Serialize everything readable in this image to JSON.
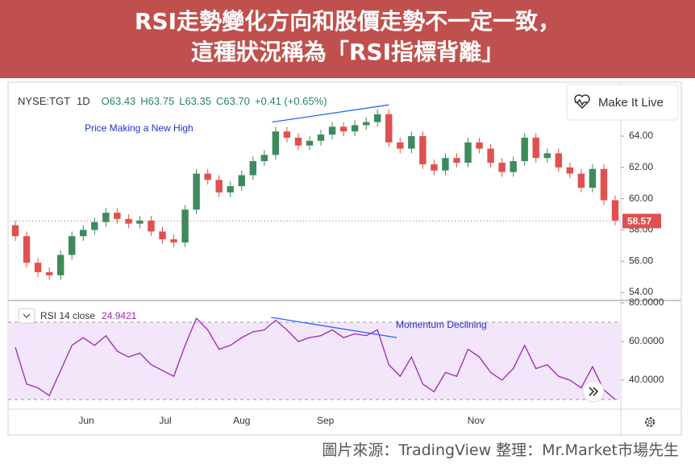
{
  "header": {
    "title": [
      "RSI走勢變化方向和股價走勢不一定一致，",
      "這種狀況稱為「RSI指標背離」"
    ]
  },
  "ui": {
    "button": "Make It Live"
  },
  "footer": "圖片來源：TradingView  整理：Mr.Market市場先生",
  "chart_data": [
    {
      "type": "candlestick",
      "symbol": "NYSE:TGT",
      "interval": "1D",
      "ohlc_text": [
        "O63.43",
        "H63.75",
        "L63.35",
        "C63.70",
        "+0.41 (+0.65%)"
      ],
      "annotation": "Price Making a New High",
      "trendline": {
        "x": [
          22.7,
          33.0
        ],
        "y": [
          64.9,
          66.0
        ],
        "color": "#2962ff"
      },
      "last_price": 58.57,
      "up_color": "#3d8a5c",
      "down_color": "#e0504e",
      "open": [
        58.3,
        57.6,
        55.9,
        55.3,
        55.1,
        56.4,
        57.6,
        58.0,
        58.5,
        59.1,
        58.7,
        58.4,
        58.6,
        57.9,
        57.4,
        57.2,
        59.3,
        61.6,
        61.2,
        60.4,
        60.8,
        61.5,
        62.4,
        62.8,
        64.3,
        63.9,
        63.4,
        63.7,
        64.1,
        64.6,
        64.3,
        64.7,
        64.9,
        65.4,
        63.6,
        63.2,
        64.0,
        62.2,
        61.8,
        62.6,
        62.3,
        63.6,
        63.2,
        62.3,
        61.7,
        62.4,
        63.9,
        62.6,
        62.9,
        62.0,
        61.6,
        60.7,
        61.9,
        59.9
      ],
      "high": [
        58.6,
        57.9,
        56.2,
        55.6,
        56.7,
        57.9,
        58.3,
        58.8,
        59.4,
        59.4,
        59.0,
        58.9,
        58.9,
        58.2,
        57.7,
        59.6,
        61.9,
        61.9,
        61.5,
        61.1,
        61.8,
        62.7,
        63.1,
        64.6,
        64.6,
        64.2,
        64.0,
        64.4,
        64.9,
        64.9,
        65.0,
        65.2,
        65.7,
        65.7,
        63.9,
        64.3,
        64.3,
        62.5,
        62.9,
        62.9,
        63.9,
        63.9,
        63.5,
        62.6,
        62.7,
        64.2,
        64.2,
        63.2,
        63.2,
        62.3,
        61.9,
        62.2,
        62.2,
        60.2
      ],
      "low": [
        57.3,
        55.6,
        55.0,
        54.8,
        54.8,
        56.1,
        57.3,
        57.7,
        58.2,
        58.4,
        58.1,
        58.1,
        57.6,
        57.1,
        56.9,
        56.9,
        59.0,
        60.9,
        60.1,
        60.1,
        60.5,
        61.2,
        62.1,
        62.5,
        63.6,
        63.1,
        63.1,
        63.4,
        63.8,
        64.0,
        64.0,
        64.4,
        64.6,
        63.3,
        62.9,
        62.9,
        61.9,
        61.5,
        61.5,
        62.0,
        62.0,
        62.9,
        62.0,
        61.4,
        61.4,
        62.1,
        62.3,
        62.3,
        61.7,
        61.3,
        60.4,
        60.4,
        59.6,
        58.3
      ],
      "close": [
        57.6,
        55.9,
        55.3,
        55.1,
        56.4,
        57.6,
        58.0,
        58.5,
        59.1,
        58.7,
        58.4,
        58.6,
        57.9,
        57.4,
        57.2,
        59.3,
        61.6,
        61.2,
        60.4,
        60.8,
        61.5,
        62.4,
        62.8,
        64.3,
        63.9,
        63.4,
        63.7,
        64.1,
        64.6,
        64.3,
        64.7,
        64.9,
        65.4,
        63.6,
        63.2,
        64.0,
        62.2,
        61.8,
        62.6,
        62.3,
        63.6,
        63.2,
        62.3,
        61.7,
        62.4,
        63.9,
        62.6,
        62.9,
        62.0,
        61.6,
        60.7,
        61.9,
        59.9,
        58.6
      ],
      "xlim": [
        -0.5,
        53.5
      ],
      "xticks": [
        {
          "value": 6.27,
          "label": "Jun"
        },
        {
          "value": 13.25,
          "label": "Jul"
        },
        {
          "value": 20.0,
          "label": "Aug"
        },
        {
          "value": 27.4,
          "label": "Sep"
        },
        {
          "value": 40.7,
          "label": "Nov"
        }
      ],
      "ylim": [
        53.54,
        67.4
      ],
      "yticks": [
        {
          "value": 54,
          "label": "54.00"
        },
        {
          "value": 56,
          "label": "56.00"
        },
        {
          "value": 58,
          "label": "58.00"
        },
        {
          "value": 60,
          "label": "60.00"
        },
        {
          "value": 62,
          "label": "62.00"
        },
        {
          "value": 64,
          "label": "64.00"
        }
      ]
    },
    {
      "type": "line",
      "name": "RSI 14 close",
      "current": 24.9421,
      "color": "#9c27b0",
      "annotation": "Momentum Declining",
      "trendline": {
        "x": [
          22.6,
          33.7
        ],
        "y": [
          72.5,
          62.0
        ],
        "color": "#2962ff"
      },
      "band": [
        30,
        70
      ],
      "band_color": "#f3e6fb",
      "values": [
        57,
        38,
        36,
        32,
        45,
        58,
        62,
        58,
        63,
        55,
        52,
        54,
        48,
        45,
        42,
        58,
        72,
        66,
        56,
        58,
        62,
        65,
        66,
        71,
        66,
        60,
        62,
        63,
        66,
        62,
        64,
        63,
        66,
        48,
        42,
        52,
        38,
        34,
        44,
        42,
        56,
        52,
        44,
        40,
        46,
        58,
        46,
        48,
        42,
        40,
        36,
        47,
        35,
        30
      ],
      "ylim": [
        25.4,
        80.4
      ],
      "yticks": [
        {
          "value": 40,
          "label": "40.0000"
        },
        {
          "value": 60,
          "label": "60.0000"
        },
        {
          "value": 80,
          "label": "80.0000"
        }
      ]
    }
  ]
}
